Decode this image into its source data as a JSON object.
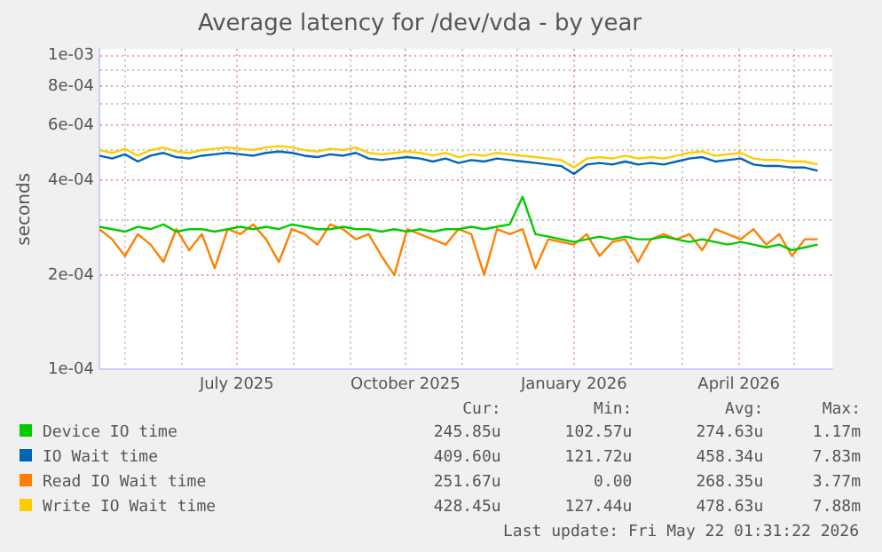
{
  "chart_data": {
    "type": "line",
    "title": "Average latency for /dev/vda - by year",
    "ylabel": "seconds",
    "log": "y",
    "grid": true,
    "legend": "bottom",
    "marker": "none",
    "line_style": "solid",
    "x": [
      "2025-04-17",
      "2025-04-24",
      "2025-05-01",
      "2025-05-08",
      "2025-05-15",
      "2025-05-22",
      "2025-05-29",
      "2025-06-05",
      "2025-06-12",
      "2025-06-19",
      "2025-06-26",
      "2025-07-03",
      "2025-07-10",
      "2025-07-17",
      "2025-07-24",
      "2025-07-31",
      "2025-08-07",
      "2025-08-14",
      "2025-08-21",
      "2025-08-28",
      "2025-09-04",
      "2025-09-11",
      "2025-09-18",
      "2025-09-25",
      "2025-10-02",
      "2025-10-09",
      "2025-10-16",
      "2025-10-23",
      "2025-10-30",
      "2025-11-06",
      "2025-11-13",
      "2025-11-20",
      "2025-11-27",
      "2025-12-04",
      "2025-12-11",
      "2025-12-18",
      "2025-12-25",
      "2026-01-01",
      "2026-01-08",
      "2026-01-15",
      "2026-01-22",
      "2026-01-29",
      "2026-02-05",
      "2026-02-12",
      "2026-02-19",
      "2026-02-26",
      "2026-03-05",
      "2026-03-12",
      "2026-03-19",
      "2026-03-26",
      "2026-04-02",
      "2026-04-09",
      "2026-04-16",
      "2026-04-23",
      "2026-04-30",
      "2026-05-07",
      "2026-05-14"
    ],
    "xlim": [
      "2025-04-17",
      "2026-05-22"
    ],
    "xticks": [
      {
        "value": "2025-05-01",
        "label": null
      },
      {
        "value": "2025-06-01",
        "label": null
      },
      {
        "value": "2025-07-01",
        "label": "July 2025"
      },
      {
        "value": "2025-08-01",
        "label": null
      },
      {
        "value": "2025-09-01",
        "label": null
      },
      {
        "value": "2025-10-01",
        "label": "October 2025"
      },
      {
        "value": "2025-11-01",
        "label": null
      },
      {
        "value": "2025-12-01",
        "label": null
      },
      {
        "value": "2026-01-01",
        "label": "January 2026"
      },
      {
        "value": "2026-02-01",
        "label": null
      },
      {
        "value": "2026-03-01",
        "label": null
      },
      {
        "value": "2026-04-01",
        "label": "April 2026"
      },
      {
        "value": "2026-05-01",
        "label": null
      }
    ],
    "ylim": [
      0.0001,
      0.00105
    ],
    "yticks": [
      {
        "value": 0.0001,
        "label": "1e-04"
      },
      {
        "value": 0.0002,
        "label": "2e-04"
      },
      {
        "value": 0.0003,
        "label": null
      },
      {
        "value": 0.0004,
        "label": "4e-04"
      },
      {
        "value": 0.0005,
        "label": null
      },
      {
        "value": 0.0006,
        "label": "6e-04"
      },
      {
        "value": 0.0007,
        "label": null
      },
      {
        "value": 0.0008,
        "label": "8e-04"
      },
      {
        "value": 0.0009,
        "label": null
      },
      {
        "value": 0.001,
        "label": "1e-03"
      }
    ],
    "series": [
      {
        "name": "Device IO time",
        "color": "#00cc00",
        "values": [
          0.000285,
          0.00028,
          0.000275,
          0.000285,
          0.00028,
          0.00029,
          0.000275,
          0.00028,
          0.00028,
          0.000275,
          0.00028,
          0.000285,
          0.00028,
          0.000285,
          0.00028,
          0.00029,
          0.000285,
          0.00028,
          0.00028,
          0.000285,
          0.00028,
          0.00028,
          0.000275,
          0.00028,
          0.000275,
          0.00028,
          0.000275,
          0.00028,
          0.00028,
          0.000285,
          0.00028,
          0.000285,
          0.00029,
          0.000355,
          0.00027,
          0.000265,
          0.00026,
          0.000255,
          0.00026,
          0.000265,
          0.00026,
          0.000265,
          0.00026,
          0.00026,
          0.000265,
          0.00026,
          0.000255,
          0.00026,
          0.000255,
          0.00025,
          0.000255,
          0.00025,
          0.000245,
          0.00025,
          0.00024,
          0.000245,
          0.00025
        ]
      },
      {
        "name": "IO Wait time",
        "color": "#0066b3",
        "values": [
          0.00048,
          0.00047,
          0.000485,
          0.00046,
          0.00048,
          0.00049,
          0.000475,
          0.00047,
          0.00048,
          0.000485,
          0.00049,
          0.000485,
          0.00048,
          0.00049,
          0.000495,
          0.00049,
          0.00048,
          0.000475,
          0.000485,
          0.00048,
          0.00049,
          0.00047,
          0.000465,
          0.00047,
          0.000475,
          0.00047,
          0.00046,
          0.00047,
          0.000455,
          0.000465,
          0.00046,
          0.00047,
          0.000465,
          0.00046,
          0.000455,
          0.00045,
          0.000445,
          0.00042,
          0.00045,
          0.000455,
          0.00045,
          0.00046,
          0.00045,
          0.000455,
          0.00045,
          0.00046,
          0.00047,
          0.000475,
          0.00046,
          0.000465,
          0.00047,
          0.00045,
          0.000445,
          0.000445,
          0.00044,
          0.00044,
          0.00043
        ]
      },
      {
        "name": "Read IO Wait time",
        "color": "#ff8000",
        "values": [
          0.00028,
          0.00026,
          0.00023,
          0.00027,
          0.00025,
          0.00022,
          0.00028,
          0.00024,
          0.00027,
          0.00021,
          0.00028,
          0.00027,
          0.00029,
          0.00026,
          0.00022,
          0.00028,
          0.00027,
          0.00025,
          0.00029,
          0.00028,
          0.00026,
          0.00027,
          0.00023,
          0.0002,
          0.00028,
          0.00027,
          0.00026,
          0.00025,
          0.00028,
          0.00027,
          0.0002,
          0.00028,
          0.00027,
          0.00028,
          0.00021,
          0.00026,
          0.000255,
          0.00025,
          0.00027,
          0.00023,
          0.000255,
          0.00026,
          0.00022,
          0.00026,
          0.00027,
          0.00026,
          0.00027,
          0.00024,
          0.00028,
          0.00027,
          0.00026,
          0.00028,
          0.00025,
          0.00027,
          0.00023,
          0.00026,
          0.00026
        ]
      },
      {
        "name": "Write IO Wait time",
        "color": "#ffcc00",
        "values": [
          0.0005,
          0.00049,
          0.000505,
          0.00048,
          0.0005,
          0.00051,
          0.000495,
          0.00049,
          0.0005,
          0.000505,
          0.00051,
          0.000505,
          0.0005,
          0.00051,
          0.000515,
          0.00051,
          0.0005,
          0.000495,
          0.000505,
          0.0005,
          0.00051,
          0.00049,
          0.000485,
          0.00049,
          0.000495,
          0.00049,
          0.00048,
          0.00049,
          0.000475,
          0.000485,
          0.00048,
          0.00049,
          0.000485,
          0.00048,
          0.000475,
          0.00047,
          0.000465,
          0.00044,
          0.00047,
          0.000475,
          0.00047,
          0.00048,
          0.00047,
          0.000475,
          0.00047,
          0.00048,
          0.00049,
          0.000495,
          0.00048,
          0.000485,
          0.00049,
          0.00047,
          0.000465,
          0.000465,
          0.00046,
          0.00046,
          0.00045
        ]
      }
    ],
    "annotations": [
      "Cur:",
      "Min:",
      "Avg:",
      "Max:",
      "245.85u",
      "102.57u",
      "274.63u",
      "1.17m",
      "409.60u",
      "121.72u",
      "458.34u",
      "7.83m",
      "251.67u",
      "0.00",
      "268.35u",
      "3.77m",
      "428.45u",
      "127.44u",
      "478.63u",
      "7.88m",
      "Last update: Fri May 22 01:31:22 2026"
    ]
  }
}
